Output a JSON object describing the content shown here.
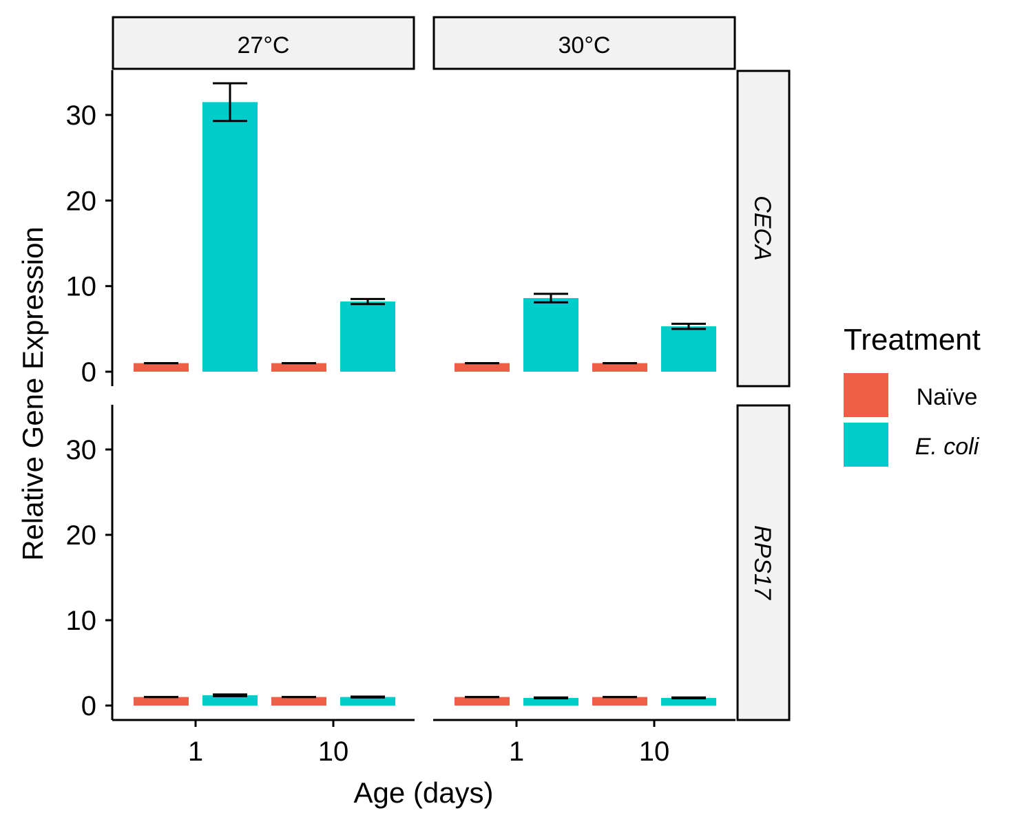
{
  "chart_data": {
    "type": "bar",
    "xlabel": "Age (days)",
    "ylabel": "Relative Gene Expression",
    "ylim": [
      0,
      35
    ],
    "yticks": [
      0,
      10,
      20,
      30
    ],
    "categories": [
      "1",
      "10"
    ],
    "facet_columns": [
      "27°C",
      "30°C"
    ],
    "facet_rows": [
      "CECA",
      "RPS17"
    ],
    "grid": false,
    "legend": {
      "title": "Treatment",
      "position": "right",
      "entries": [
        {
          "label": "Naïve",
          "color": "#EE5F47",
          "italic": false
        },
        {
          "label": "E. coli",
          "color": "#00CCCC",
          "italic": true
        }
      ]
    },
    "panels": [
      {
        "row": "CECA",
        "column": "27°C",
        "series": [
          {
            "name": "Naïve",
            "values": [
              1.0,
              1.0
            ],
            "error": [
              0.0,
              0.0
            ]
          },
          {
            "name": "E. coli",
            "values": [
              31.5,
              8.2
            ],
            "error": [
              2.2,
              0.3
            ]
          }
        ]
      },
      {
        "row": "CECA",
        "column": "30°C",
        "series": [
          {
            "name": "Naïve",
            "values": [
              1.0,
              1.0
            ],
            "error": [
              0.0,
              0.0
            ]
          },
          {
            "name": "E. coli",
            "values": [
              8.6,
              5.3
            ],
            "error": [
              0.5,
              0.3
            ]
          }
        ]
      },
      {
        "row": "RPS17",
        "column": "27°C",
        "series": [
          {
            "name": "Naïve",
            "values": [
              1.0,
              1.0
            ],
            "error": [
              0.0,
              0.0
            ]
          },
          {
            "name": "E. coli",
            "values": [
              1.2,
              1.0
            ],
            "error": [
              0.1,
              0.05
            ]
          }
        ]
      },
      {
        "row": "RPS17",
        "column": "30°C",
        "series": [
          {
            "name": "Naïve",
            "values": [
              1.0,
              1.0
            ],
            "error": [
              0.0,
              0.0
            ]
          },
          {
            "name": "E. coli",
            "values": [
              0.9,
              0.9
            ],
            "error": [
              0.05,
              0.05
            ]
          }
        ]
      }
    ]
  }
}
